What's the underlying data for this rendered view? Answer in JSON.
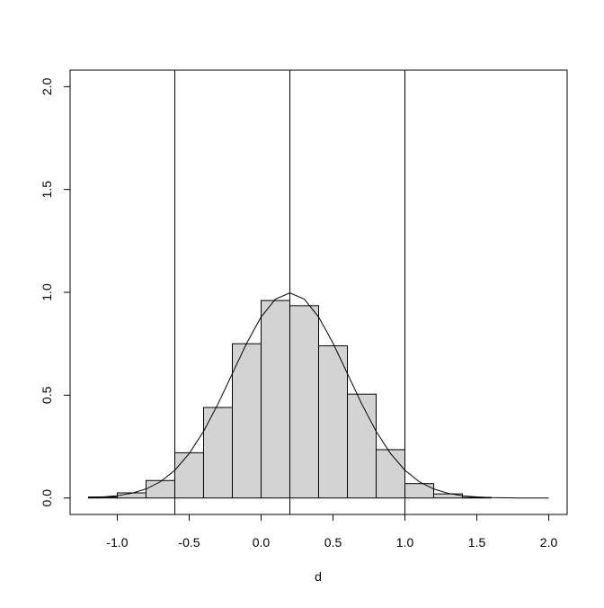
{
  "chart_data": {
    "type": "histogram",
    "xlabel": "d",
    "bins": [
      -1.2,
      -1.0,
      -0.8,
      -0.6,
      -0.4,
      -0.2,
      0.0,
      0.2,
      0.4,
      0.6,
      0.8,
      1.0,
      1.2,
      1.4,
      1.6
    ],
    "values": [
      0.005,
      0.025,
      0.085,
      0.22,
      0.44,
      0.75,
      0.96,
      0.935,
      0.74,
      0.505,
      0.235,
      0.07,
      0.02,
      0.003
    ],
    "color": "#d3d3d3",
    "curve": {
      "x": [
        -1.2,
        -1.1,
        -1.0,
        -0.9,
        -0.8,
        -0.7,
        -0.6,
        -0.5,
        -0.4,
        -0.3,
        -0.2,
        -0.1,
        0.0,
        0.1,
        0.2,
        0.3,
        0.4,
        0.5,
        0.6,
        0.7,
        0.8,
        0.9,
        1.0,
        1.1,
        1.2,
        1.3,
        1.4,
        1.5,
        1.6,
        1.7,
        1.8,
        1.9,
        2.0
      ],
      "values": [
        0.002,
        0.005,
        0.011,
        0.023,
        0.044,
        0.079,
        0.135,
        0.216,
        0.324,
        0.457,
        0.605,
        0.753,
        0.88,
        0.967,
        0.997,
        0.967,
        0.88,
        0.753,
        0.605,
        0.457,
        0.324,
        0.216,
        0.135,
        0.079,
        0.044,
        0.023,
        0.011,
        0.005,
        0.002,
        0.001,
        0,
        0,
        0
      ]
    },
    "vlines": [
      -0.6,
      0.2,
      1.0
    ],
    "xlim": [
      -1.328,
      2.128
    ],
    "ylim": [
      -0.08,
      2.08
    ],
    "xticks": [
      {
        "value": -1,
        "label": "-1.0"
      },
      -0.5,
      {
        "value": 0,
        "label": "0.0"
      },
      0.5,
      {
        "value": 1,
        "label": "1.0"
      },
      1.5,
      {
        "value": 2,
        "label": "2.0"
      }
    ],
    "yticks": [
      {
        "value": 0,
        "label": "0.0"
      },
      0.5,
      {
        "value": 1,
        "label": "1.0"
      },
      1.5,
      {
        "value": 2,
        "label": "2.0"
      }
    ]
  }
}
